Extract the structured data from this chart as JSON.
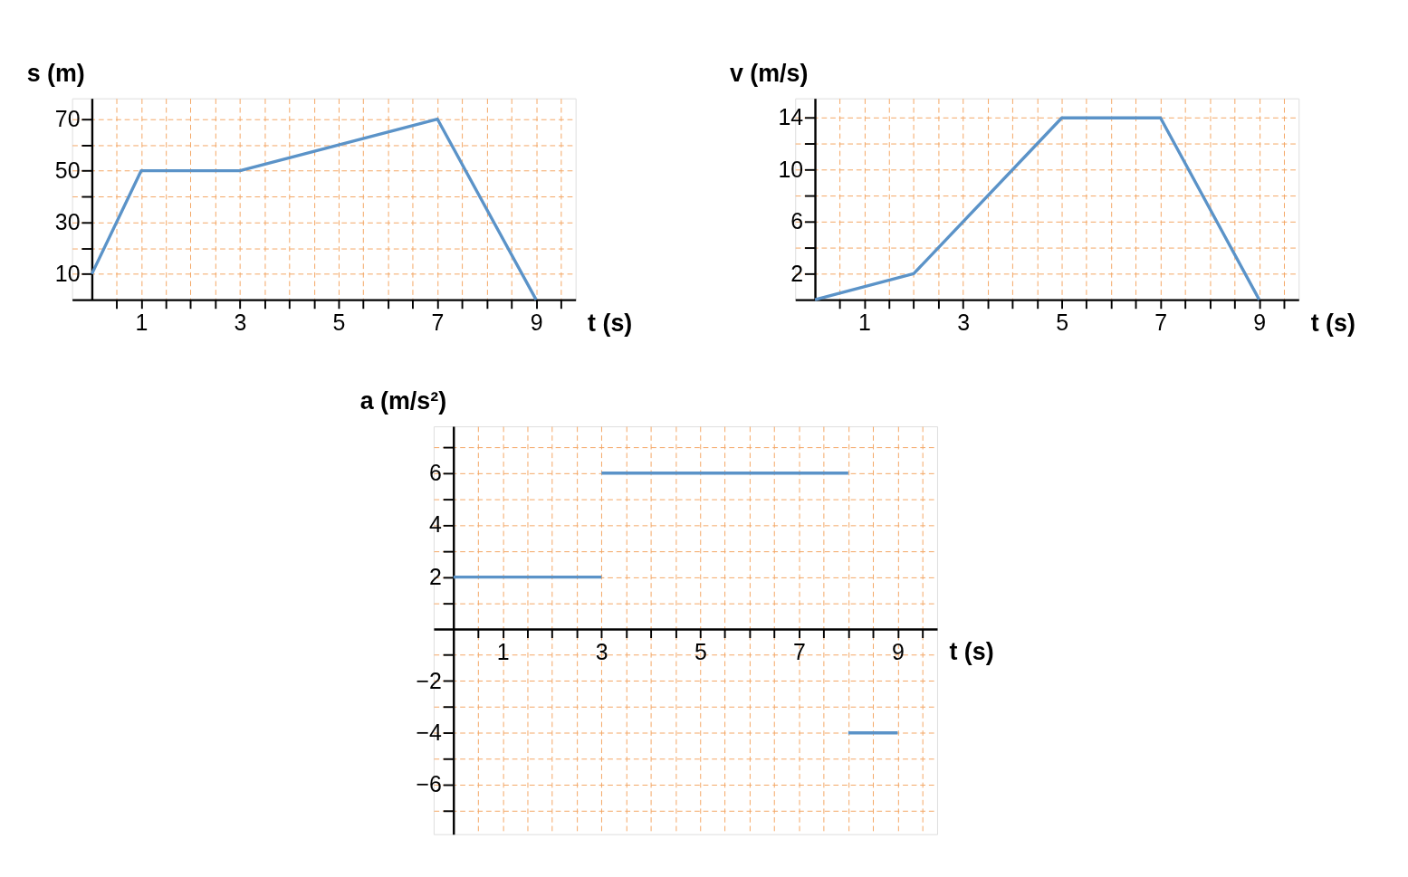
{
  "chart_data": [
    {
      "type": "line",
      "ylabel": "s (m)",
      "xlabel": "t (s)",
      "xlim": [
        -0.4,
        9.8
      ],
      "ylim": [
        0,
        78
      ],
      "grid": true,
      "legend": false,
      "marker": "none",
      "line_style": "solid",
      "xticks": [
        {
          "value": 0.5,
          "label": null
        },
        1,
        {
          "value": 1.5,
          "label": null
        },
        {
          "value": 2,
          "label": null
        },
        {
          "value": 2.5,
          "label": null
        },
        3,
        {
          "value": 3.5,
          "label": null
        },
        {
          "value": 4,
          "label": null
        },
        {
          "value": 4.5,
          "label": null
        },
        5,
        {
          "value": 5.5,
          "label": null
        },
        {
          "value": 6,
          "label": null
        },
        {
          "value": 6.5,
          "label": null
        },
        7,
        {
          "value": 7.5,
          "label": null
        },
        {
          "value": 8,
          "label": null
        },
        {
          "value": 8.5,
          "label": null
        },
        9,
        {
          "value": 9.5,
          "label": null
        }
      ],
      "yticks": [
        10,
        {
          "value": 20,
          "label": null
        },
        30,
        {
          "value": 40,
          "label": null
        },
        50,
        {
          "value": 60,
          "label": null
        },
        70
      ],
      "series": [
        {
          "color": "#5b93c8",
          "x": [
            0,
            1,
            3,
            7,
            9
          ],
          "values": [
            10,
            50,
            50,
            70,
            0
          ]
        }
      ]
    },
    {
      "type": "line",
      "ylabel": "v (m/s)",
      "xlabel": "t (s)",
      "xlim": [
        -0.4,
        9.8
      ],
      "ylim": [
        0,
        15.5
      ],
      "grid": true,
      "legend": false,
      "marker": "none",
      "line_style": "solid",
      "xticks": [
        {
          "value": 0.5,
          "label": null
        },
        1,
        {
          "value": 1.5,
          "label": null
        },
        {
          "value": 2,
          "label": null
        },
        {
          "value": 2.5,
          "label": null
        },
        3,
        {
          "value": 3.5,
          "label": null
        },
        {
          "value": 4,
          "label": null
        },
        {
          "value": 4.5,
          "label": null
        },
        5,
        {
          "value": 5.5,
          "label": null
        },
        {
          "value": 6,
          "label": null
        },
        {
          "value": 6.5,
          "label": null
        },
        7,
        {
          "value": 7.5,
          "label": null
        },
        {
          "value": 8,
          "label": null
        },
        {
          "value": 8.5,
          "label": null
        },
        9,
        {
          "value": 9.5,
          "label": null
        }
      ],
      "yticks": [
        2,
        {
          "value": 4,
          "label": null
        },
        6,
        {
          "value": 8,
          "label": null
        },
        10,
        {
          "value": 12,
          "label": null
        },
        14
      ],
      "series": [
        {
          "color": "#5b93c8",
          "x": [
            0,
            2,
            5,
            7,
            9
          ],
          "values": [
            0,
            2,
            14,
            14,
            0
          ]
        }
      ]
    },
    {
      "type": "line",
      "ylabel": "a (m/s²)",
      "xlabel": "t (s)",
      "xlim": [
        -0.4,
        9.8
      ],
      "ylim": [
        -7.9,
        7.8
      ],
      "grid": true,
      "legend": false,
      "marker": "none",
      "line_style": "solid",
      "xticks": [
        {
          "value": 0.5,
          "label": null
        },
        1,
        {
          "value": 1.5,
          "label": null
        },
        {
          "value": 2,
          "label": null
        },
        {
          "value": 2.5,
          "label": null
        },
        3,
        {
          "value": 3.5,
          "label": null
        },
        {
          "value": 4,
          "label": null
        },
        {
          "value": 4.5,
          "label": null
        },
        5,
        {
          "value": 5.5,
          "label": null
        },
        {
          "value": 6,
          "label": null
        },
        {
          "value": 6.5,
          "label": null
        },
        7,
        {
          "value": 7.5,
          "label": null
        },
        {
          "value": 8,
          "label": null
        },
        {
          "value": 8.5,
          "label": null
        },
        9,
        {
          "value": 9.5,
          "label": null
        }
      ],
      "yticks": [
        {
          "value": -7,
          "label": null
        },
        {
          "value": -6,
          "label": "−6"
        },
        {
          "value": -5,
          "label": null
        },
        {
          "value": -4,
          "label": "−4"
        },
        {
          "value": -3,
          "label": null
        },
        {
          "value": -2,
          "label": "−2"
        },
        {
          "value": -1,
          "label": null
        },
        {
          "value": 1,
          "label": null
        },
        2,
        {
          "value": 3,
          "label": null
        },
        4,
        {
          "value": 5,
          "label": null
        },
        6,
        {
          "value": 7,
          "label": null
        }
      ],
      "series": [
        {
          "color": "#5b93c8",
          "x": [
            0,
            3
          ],
          "values": [
            2,
            2
          ]
        },
        {
          "color": "#5b93c8",
          "x": [
            3,
            8
          ],
          "values": [
            6,
            6
          ]
        },
        {
          "color": "#5b93c8",
          "x": [
            8,
            9
          ],
          "values": [
            -4,
            -4
          ]
        }
      ]
    }
  ]
}
